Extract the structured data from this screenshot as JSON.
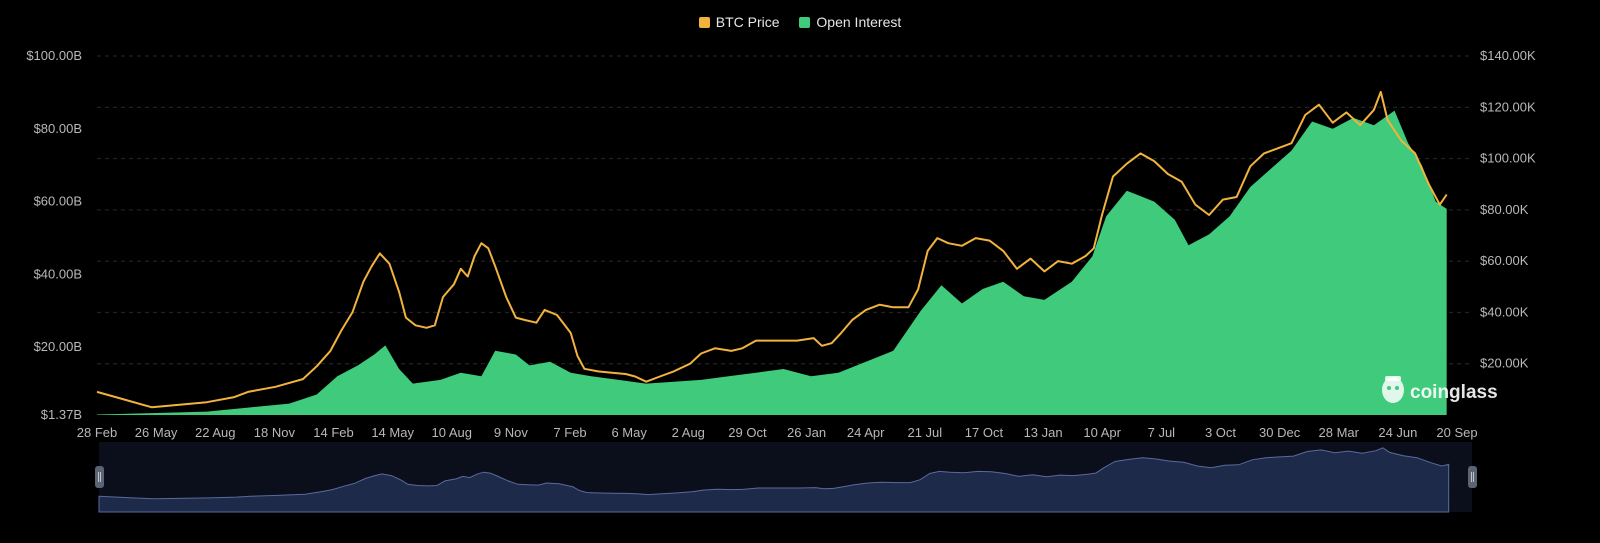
{
  "chart_data": {
    "type": "area",
    "legend_position": "top-center",
    "grid": true,
    "watermark": "coinglass",
    "colors": {
      "price": "#F2B33D",
      "open_interest": "#3FCB7B",
      "navigator": "#1E2A4A",
      "grid": "#2a2a2a",
      "background": "#000000"
    },
    "series": [
      {
        "name": "BTC Price",
        "axis": "right",
        "type": "line"
      },
      {
        "name": "Open Interest",
        "axis": "left",
        "type": "area"
      }
    ],
    "y_left": {
      "ticks": [
        "$1.37B",
        "$20.00B",
        "$40.00B",
        "$60.00B",
        "$80.00B",
        "$100.00B"
      ],
      "tick_values": [
        1.37,
        20,
        40,
        60,
        80,
        100
      ],
      "unit": "B",
      "range": [
        1.37,
        100
      ]
    },
    "y_right": {
      "ticks": [
        "$20.00K",
        "$40.00K",
        "$60.00K",
        "$80.00K",
        "$100.00K",
        "$120.00K",
        "$140.00K"
      ],
      "tick_values": [
        20,
        40,
        60,
        80,
        100,
        120,
        140
      ],
      "unit": "K",
      "range": [
        0,
        140
      ]
    },
    "x_ticks": [
      "28 Feb",
      "26 May",
      "22 Aug",
      "18 Nov",
      "14 Feb",
      "14 May",
      "10 Aug",
      "9 Nov",
      "7 Feb",
      "6 May",
      "2 Aug",
      "29 Oct",
      "26 Jan",
      "24 Apr",
      "21 Jul",
      "17 Oct",
      "13 Jan",
      "10 Apr",
      "7 Jul",
      "3 Oct",
      "30 Dec",
      "28 Mar",
      "24 Jun",
      "20 Sep"
    ],
    "price_points": [
      [
        0,
        9
      ],
      [
        4,
        3
      ],
      [
        8,
        5
      ],
      [
        10,
        7
      ],
      [
        11,
        9
      ],
      [
        13,
        11
      ],
      [
        15,
        14
      ],
      [
        16,
        19
      ],
      [
        17,
        25
      ],
      [
        17.8,
        33
      ],
      [
        18.6,
        40
      ],
      [
        19.4,
        52
      ],
      [
        20,
        58
      ],
      [
        20.6,
        63
      ],
      [
        21.3,
        59
      ],
      [
        22,
        48
      ],
      [
        22.5,
        38
      ],
      [
        23.2,
        35
      ],
      [
        24,
        34
      ],
      [
        24.6,
        35
      ],
      [
        25.2,
        46
      ],
      [
        26,
        51
      ],
      [
        26.5,
        57
      ],
      [
        27,
        54
      ],
      [
        27.5,
        62
      ],
      [
        28,
        67
      ],
      [
        28.5,
        65
      ],
      [
        29,
        58
      ],
      [
        29.8,
        46
      ],
      [
        30.5,
        38
      ],
      [
        31.2,
        37
      ],
      [
        32,
        36
      ],
      [
        32.6,
        41
      ],
      [
        33.5,
        39
      ],
      [
        34.5,
        32
      ],
      [
        35,
        23
      ],
      [
        35.5,
        18
      ],
      [
        36.5,
        17
      ],
      [
        37.5,
        16.5
      ],
      [
        38.5,
        16
      ],
      [
        39.2,
        15
      ],
      [
        40,
        13
      ],
      [
        41,
        15
      ],
      [
        42,
        17
      ],
      [
        43.2,
        20
      ],
      [
        44,
        24
      ],
      [
        45,
        26
      ],
      [
        46.2,
        25
      ],
      [
        47,
        26
      ],
      [
        48,
        29
      ],
      [
        49,
        29
      ],
      [
        50.2,
        29
      ],
      [
        51,
        29
      ],
      [
        52.2,
        30
      ],
      [
        52.8,
        27
      ],
      [
        53.5,
        28
      ],
      [
        54.2,
        32
      ],
      [
        55,
        37
      ],
      [
        56,
        41
      ],
      [
        57,
        43
      ],
      [
        58,
        42
      ],
      [
        59.1,
        42
      ],
      [
        59.8,
        49
      ],
      [
        60.5,
        64
      ],
      [
        61.2,
        69
      ],
      [
        62,
        67
      ],
      [
        63,
        66
      ],
      [
        64,
        69
      ],
      [
        65,
        68
      ],
      [
        66,
        64
      ],
      [
        67,
        57
      ],
      [
        68,
        61
      ],
      [
        69,
        56
      ],
      [
        70,
        60
      ],
      [
        71,
        59
      ],
      [
        72,
        62
      ],
      [
        72.6,
        65
      ],
      [
        73.2,
        78
      ],
      [
        74,
        93
      ],
      [
        75,
        98
      ],
      [
        76,
        102
      ],
      [
        77,
        99
      ],
      [
        78,
        94
      ],
      [
        79,
        91
      ],
      [
        80,
        82
      ],
      [
        81,
        78
      ],
      [
        82,
        84
      ],
      [
        83,
        85
      ],
      [
        84,
        97
      ],
      [
        85,
        102
      ],
      [
        86,
        104
      ],
      [
        87,
        106
      ],
      [
        88,
        117
      ],
      [
        89,
        121
      ],
      [
        90,
        114
      ],
      [
        91,
        118
      ],
      [
        92,
        113
      ],
      [
        93,
        119
      ],
      [
        93.5,
        126
      ],
      [
        94,
        115
      ],
      [
        95,
        107
      ],
      [
        96,
        102
      ],
      [
        97,
        90
      ],
      [
        97.8,
        82
      ],
      [
        98.3,
        86
      ]
    ],
    "oi_points": [
      [
        0,
        1.5
      ],
      [
        4,
        1.9
      ],
      [
        8,
        2.3
      ],
      [
        11,
        3.4
      ],
      [
        14,
        4.5
      ],
      [
        16,
        7
      ],
      [
        17.5,
        12
      ],
      [
        19,
        15
      ],
      [
        20.2,
        18
      ],
      [
        21,
        20.5
      ],
      [
        22,
        14
      ],
      [
        23,
        10
      ],
      [
        25,
        11
      ],
      [
        26.5,
        13
      ],
      [
        28,
        12
      ],
      [
        29,
        19
      ],
      [
        30.5,
        18
      ],
      [
        31.5,
        15
      ],
      [
        33,
        16
      ],
      [
        34.5,
        13
      ],
      [
        36,
        12
      ],
      [
        38,
        11
      ],
      [
        40,
        10
      ],
      [
        42,
        10.5
      ],
      [
        44,
        11
      ],
      [
        46,
        12
      ],
      [
        48,
        13
      ],
      [
        50,
        14
      ],
      [
        52,
        12
      ],
      [
        54,
        13
      ],
      [
        56,
        16
      ],
      [
        58,
        19
      ],
      [
        60,
        30
      ],
      [
        61.5,
        37
      ],
      [
        63,
        32
      ],
      [
        64.5,
        36
      ],
      [
        66,
        38
      ],
      [
        67.5,
        34
      ],
      [
        69,
        33
      ],
      [
        71,
        38
      ],
      [
        72.5,
        45
      ],
      [
        73.5,
        56
      ],
      [
        75,
        63
      ],
      [
        77,
        60
      ],
      [
        78.5,
        55
      ],
      [
        79.5,
        48
      ],
      [
        81,
        51
      ],
      [
        82.5,
        56
      ],
      [
        84,
        64
      ],
      [
        85.5,
        69
      ],
      [
        87,
        74
      ],
      [
        88.5,
        82
      ],
      [
        90,
        80
      ],
      [
        91.5,
        83
      ],
      [
        93,
        81
      ],
      [
        94.5,
        85
      ],
      [
        95.5,
        76
      ],
      [
        96.5,
        70
      ],
      [
        97.5,
        60
      ],
      [
        98.3,
        58
      ]
    ]
  }
}
